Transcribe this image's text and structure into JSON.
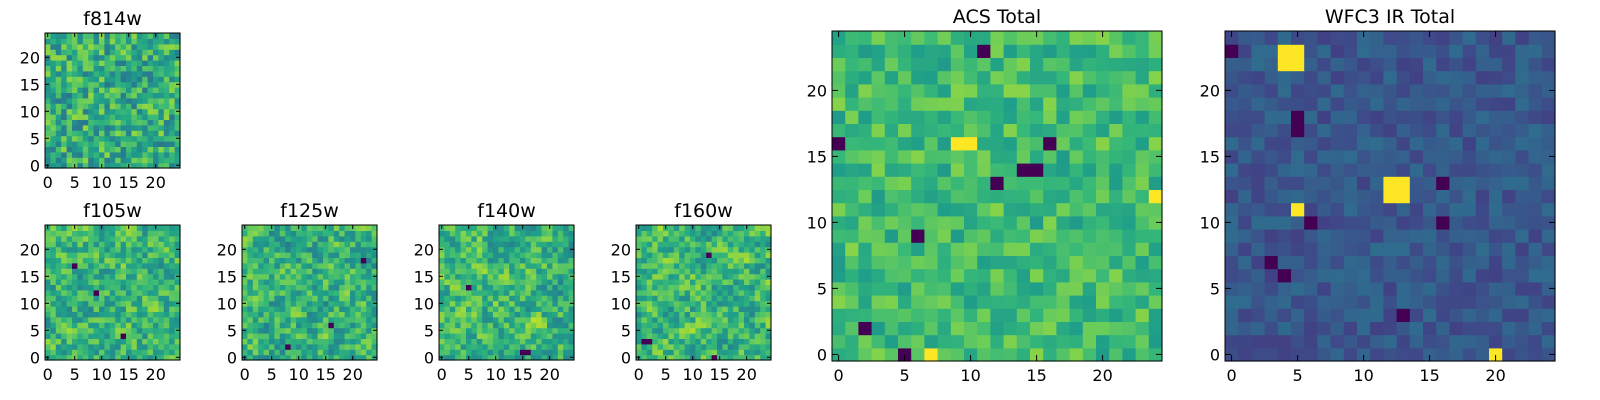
{
  "chart_data": [
    {
      "id": "f814w",
      "type": "heatmap",
      "title": "f814w",
      "grid_size": 25,
      "colormap": "viridis",
      "seed": 11,
      "smooth": 0,
      "bias": 0.62,
      "spread": 0.22,
      "xlim": [
        0,
        24
      ],
      "ylim": [
        0,
        24
      ],
      "xticks": [
        "0",
        "5",
        "10",
        "15",
        "20"
      ],
      "yticks": [
        "0",
        "5",
        "10",
        "15",
        "20"
      ],
      "hot_cells": [],
      "dark_cells": []
    },
    {
      "id": "f105w",
      "type": "heatmap",
      "title": "f105w",
      "grid_size": 25,
      "colormap": "viridis",
      "seed": 23,
      "smooth": 1,
      "bias": 0.66,
      "spread": 0.3,
      "xlim": [
        0,
        24
      ],
      "ylim": [
        0,
        24
      ],
      "xticks": [
        "0",
        "5",
        "10",
        "15",
        "20"
      ],
      "yticks": [
        "0",
        "5",
        "10",
        "15",
        "20"
      ],
      "hot_cells": [],
      "dark_cells": [
        [
          5,
          17
        ],
        [
          14,
          4
        ],
        [
          9,
          12
        ]
      ]
    },
    {
      "id": "f125w",
      "type": "heatmap",
      "title": "f125w",
      "grid_size": 25,
      "colormap": "viridis",
      "seed": 37,
      "smooth": 1,
      "bias": 0.64,
      "spread": 0.3,
      "xlim": [
        0,
        24
      ],
      "ylim": [
        0,
        24
      ],
      "xticks": [
        "0",
        "5",
        "10",
        "15",
        "20"
      ],
      "yticks": [
        "0",
        "5",
        "10",
        "15",
        "20"
      ],
      "hot_cells": [],
      "dark_cells": [
        [
          8,
          2
        ],
        [
          16,
          6
        ],
        [
          22,
          18
        ]
      ]
    },
    {
      "id": "f140w",
      "type": "heatmap",
      "title": "f140w",
      "grid_size": 25,
      "colormap": "viridis",
      "seed": 53,
      "smooth": 1,
      "bias": 0.66,
      "spread": 0.3,
      "xlim": [
        0,
        24
      ],
      "ylim": [
        0,
        24
      ],
      "xticks": [
        "0",
        "5",
        "10",
        "15",
        "20"
      ],
      "yticks": [
        "0",
        "5",
        "10",
        "15",
        "20"
      ],
      "hot_cells": [],
      "dark_cells": [
        [
          15,
          1
        ],
        [
          16,
          1
        ],
        [
          5,
          13
        ]
      ]
    },
    {
      "id": "f160w",
      "type": "heatmap",
      "title": "f160w",
      "grid_size": 25,
      "colormap": "viridis",
      "seed": 71,
      "smooth": 1,
      "bias": 0.66,
      "spread": 0.3,
      "xlim": [
        0,
        24
      ],
      "ylim": [
        0,
        24
      ],
      "xticks": [
        "0",
        "5",
        "10",
        "15",
        "20"
      ],
      "yticks": [
        "0",
        "5",
        "10",
        "15",
        "20"
      ],
      "hot_cells": [],
      "dark_cells": [
        [
          1,
          3
        ],
        [
          2,
          3
        ],
        [
          14,
          0
        ],
        [
          13,
          19
        ]
      ]
    },
    {
      "id": "acs-total",
      "type": "heatmap",
      "title": "ACS Total",
      "grid_size": 25,
      "colormap": "viridis",
      "seed": 89,
      "smooth": 0,
      "bias": 0.68,
      "spread": 0.14,
      "xlim": [
        0,
        24
      ],
      "ylim": [
        0,
        24
      ],
      "xticks": [
        "0",
        "5",
        "10",
        "15",
        "20"
      ],
      "yticks": [
        "0",
        "5",
        "10",
        "15",
        "20"
      ],
      "hot_cells": [
        [
          9,
          16
        ],
        [
          10,
          16
        ],
        [
          7,
          0
        ],
        [
          24,
          12
        ]
      ],
      "dark_cells": [
        [
          11,
          23
        ],
        [
          14,
          14
        ],
        [
          15,
          14
        ],
        [
          0,
          16
        ],
        [
          2,
          2
        ],
        [
          5,
          0
        ],
        [
          6,
          9
        ],
        [
          12,
          13
        ],
        [
          16,
          16
        ]
      ]
    },
    {
      "id": "wfc3-ir-total",
      "type": "heatmap",
      "title": "WFC3 IR Total",
      "grid_size": 25,
      "colormap": "viridis",
      "seed": 97,
      "smooth": 0,
      "bias": 0.27,
      "spread": 0.08,
      "xlim": [
        0,
        24
      ],
      "ylim": [
        0,
        24
      ],
      "xticks": [
        "0",
        "5",
        "10",
        "15",
        "20"
      ],
      "yticks": [
        "0",
        "5",
        "10",
        "15",
        "20"
      ],
      "hot_cells": [
        [
          4,
          22
        ],
        [
          5,
          22
        ],
        [
          4,
          23
        ],
        [
          5,
          23
        ],
        [
          12,
          12
        ],
        [
          13,
          12
        ],
        [
          12,
          13
        ],
        [
          13,
          13
        ],
        [
          20,
          0
        ],
        [
          5,
          11
        ]
      ],
      "dark_cells": [
        [
          0,
          23
        ],
        [
          5,
          18
        ],
        [
          5,
          17
        ],
        [
          3,
          7
        ],
        [
          4,
          6
        ],
        [
          16,
          10
        ],
        [
          13,
          3
        ],
        [
          6,
          10
        ],
        [
          16,
          13
        ]
      ]
    }
  ]
}
